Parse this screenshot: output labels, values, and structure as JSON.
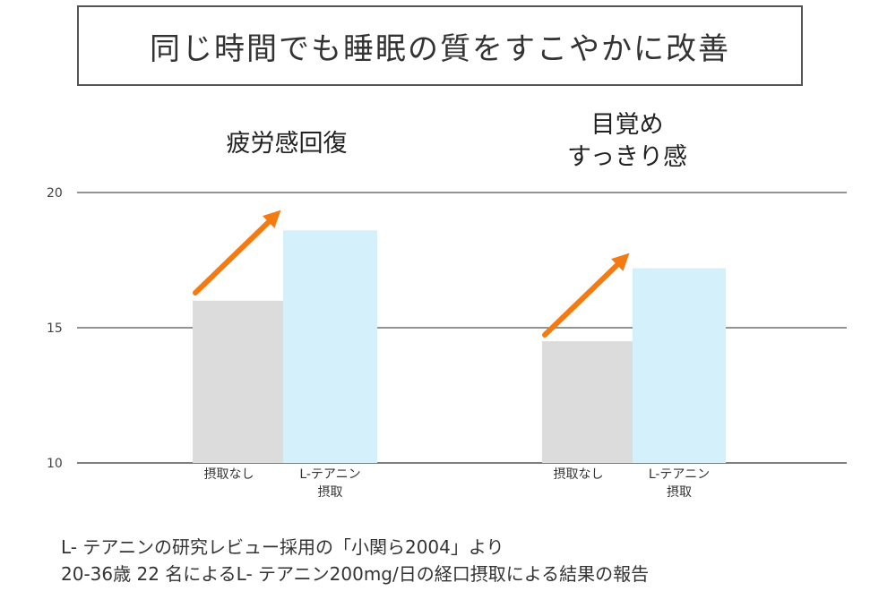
{
  "title": "同じ時間でも睡眠の質をすこやかに改善",
  "chart_data": {
    "type": "bar",
    "ylim": [
      10,
      20
    ],
    "yticks": [
      "10",
      "15",
      "20"
    ],
    "grid": true,
    "groups": [
      {
        "label_lines": [
          "疲労感回復"
        ],
        "bars": [
          {
            "category": "摂取なし",
            "value": 16.0,
            "color": "#dcdcdc"
          },
          {
            "category": "L-テアニン\n摂取",
            "value": 18.6,
            "color": "#d4f0fb"
          }
        ]
      },
      {
        "label_lines": [
          "目覚め",
          "すっきり感"
        ],
        "bars": [
          {
            "category": "摂取なし",
            "value": 14.5,
            "color": "#dcdcdc"
          },
          {
            "category": "L-テアニン\n摂取",
            "value": 17.2,
            "color": "#d4f0fb"
          }
        ]
      }
    ],
    "arrow_color": "#f47a12",
    "axis_color": "#555555"
  },
  "footnote": {
    "line1": "L- テアニンの研究レビュー採用の「小関ら2004」より",
    "line2": "20-36歳 22 名によるL- テアニン200mg/日の経口摂取による結果の報告"
  }
}
